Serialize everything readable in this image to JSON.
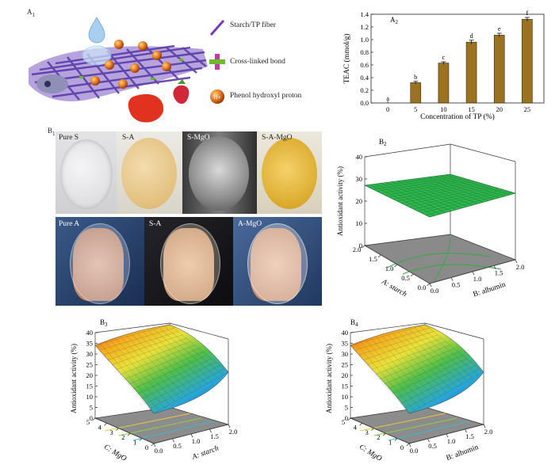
{
  "panels": {
    "a1": "A",
    "a2": "A",
    "b1": "B",
    "b2": "B",
    "b3": "B",
    "b4": "B",
    "sub": {
      "a1": "1",
      "a2": "2",
      "b1": "1",
      "b2": "2",
      "b3": "3",
      "b4": "4"
    }
  },
  "legend": {
    "fiber": "Starch/TP fiber",
    "crosslink": "Cross-linked bond",
    "phenol": "Phenol hydroxyl proton",
    "proton_symbol": "H+"
  },
  "films": {
    "row1": [
      "Pure S",
      "S-A",
      "S-MgO",
      "S-A-MgO"
    ],
    "row2": [
      "Pure A",
      "S-A",
      "A-MgO"
    ]
  },
  "chart_data": [
    {
      "type": "bar",
      "title": "",
      "categories": [
        "0",
        "5",
        "10",
        "15",
        "20",
        "25"
      ],
      "values": [
        0.0,
        0.32,
        0.63,
        0.96,
        1.07,
        1.32
      ],
      "errors": [
        0.0,
        0.02,
        0.02,
        0.03,
        0.03,
        0.03
      ],
      "significance": [
        "a",
        "b",
        "c",
        "d",
        "e",
        "f"
      ],
      "xlabel": "Concentration of TP (%)",
      "ylabel": "TEAC (mmol/g)",
      "ylim": [
        0.0,
        1.4
      ],
      "yticks": [
        "0.0",
        "0.2",
        "0.4",
        "0.6",
        "0.8",
        "1.0",
        "1.2",
        "1.4"
      ],
      "bar_color": "#9a7222"
    },
    {
      "type": "surface",
      "ylabel": "Antioxidant activity (%)",
      "zticks": [
        "0",
        "10",
        "20",
        "30",
        "40"
      ],
      "axis1_label": "A: starch",
      "axis1_ticks": [
        "0.0",
        "0.5",
        "1.0",
        "1.5",
        "2.0"
      ],
      "axis2_label": "B: albumin",
      "axis2_ticks": [
        "0.0",
        "0.5",
        "1.0",
        "1.5",
        "2.0"
      ],
      "surface_level": 23
    },
    {
      "type": "surface",
      "ylabel": "Antioxidant activity (%)",
      "zticks": [
        "0",
        "5",
        "10",
        "15",
        "20",
        "25",
        "30",
        "35",
        "40"
      ],
      "axis1_label": "C: MgO",
      "axis1_ticks": [
        "0",
        "1",
        "2",
        "3",
        "4",
        "5"
      ],
      "axis2_label": "A: starch",
      "axis2_ticks": [
        "0.0",
        "0.5",
        "1.0",
        "1.5",
        "2.0"
      ],
      "surface_range": [
        12,
        40
      ]
    },
    {
      "type": "surface",
      "ylabel": "Antioxidant activity (%)",
      "zticks": [
        "0",
        "5",
        "10",
        "15",
        "20",
        "25",
        "30",
        "35",
        "40"
      ],
      "axis1_label": "C: MgO",
      "axis1_ticks": [
        "0",
        "1",
        "2",
        "3",
        "4",
        "5"
      ],
      "axis2_label": "B: albumin",
      "axis2_ticks": [
        "0.0",
        "0.5",
        "1.0",
        "1.5",
        "2.0"
      ],
      "surface_range": [
        12,
        40
      ]
    }
  ]
}
